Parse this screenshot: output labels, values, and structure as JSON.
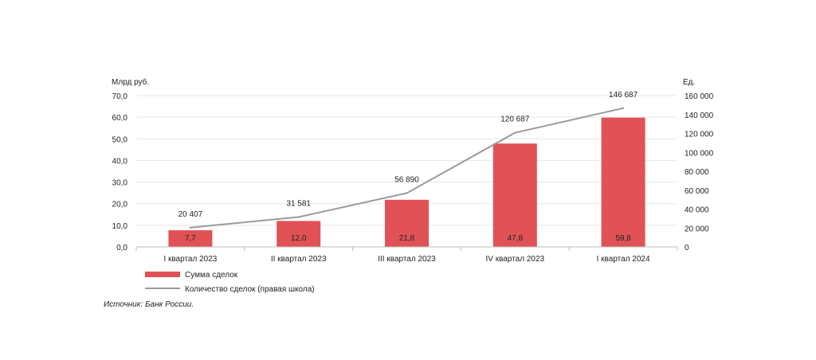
{
  "chart_data": {
    "type": "bar",
    "left_axis_label": "Млрд руб.",
    "right_axis_label": "Ед.",
    "categories": [
      "I квартал 2023",
      "II квартал 2023",
      "III квартал 2023",
      "IV квартал 2023",
      "I квартал 2024"
    ],
    "series": [
      {
        "name": "Сумма сделок",
        "type": "bar",
        "axis": "left",
        "values": [
          7.7,
          12.0,
          21.8,
          47.8,
          59.8
        ],
        "labels": [
          "7,7",
          "12,0",
          "21,8",
          "47,8",
          "59,8"
        ],
        "color": "#e05256"
      },
      {
        "name": "Количество сделок (правая школа)",
        "type": "line",
        "axis": "right",
        "values": [
          20407,
          31581,
          56890,
          120687,
          146687
        ],
        "labels": [
          "20 407",
          "31 581",
          "56 890",
          "120 687",
          "146 687"
        ],
        "color": "#9a9a9a"
      }
    ],
    "left_axis": {
      "ylim": [
        0,
        70
      ],
      "ticks": [
        0,
        10,
        20,
        30,
        40,
        50,
        60,
        70
      ],
      "tick_labels": [
        "0,0",
        "10,0",
        "20,0",
        "30,0",
        "40,0",
        "50,0",
        "60,0",
        "70,0"
      ]
    },
    "right_axis": {
      "ylim": [
        0,
        160000
      ],
      "ticks": [
        0,
        20000,
        40000,
        60000,
        80000,
        100000,
        120000,
        140000,
        160000
      ],
      "tick_labels": [
        "0",
        "20 000",
        "40 000",
        "60 000",
        "80 000",
        "100 000",
        "120 000",
        "140 000",
        "160 000"
      ]
    },
    "grid": true,
    "legend_position": "bottom-left",
    "source": "Источник: Банк России."
  }
}
